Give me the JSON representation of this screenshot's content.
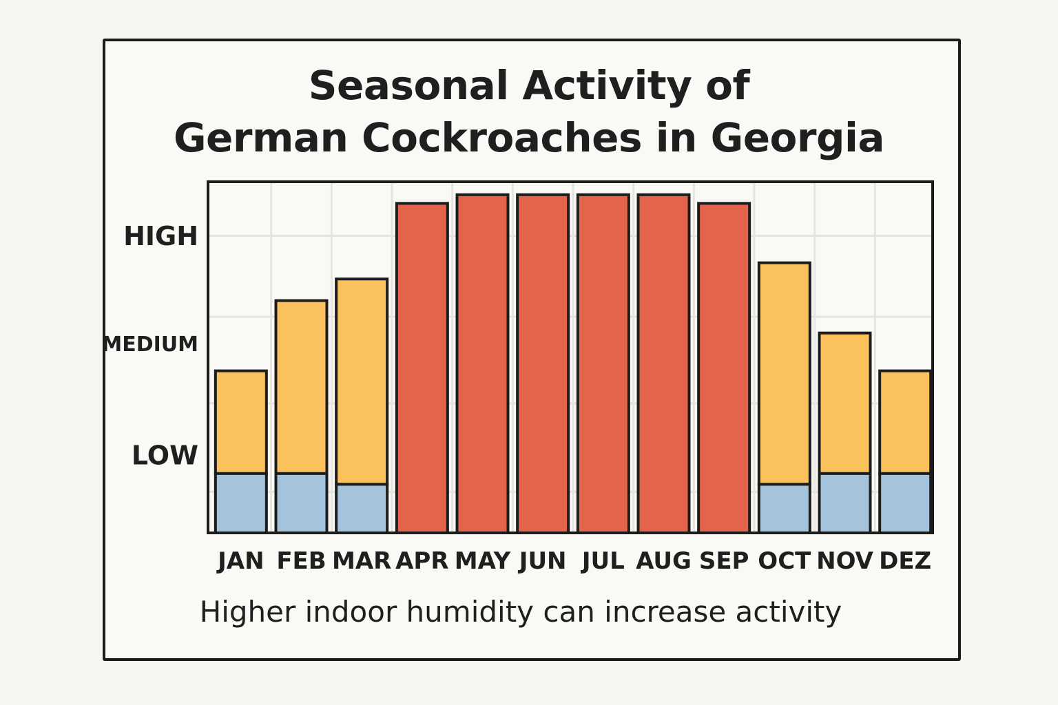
{
  "chart_data": {
    "type": "bar",
    "title": "Seasonal Activity of German Cockroaches in Georgia",
    "title_lines": [
      "Seasonal Activity of",
      "German Cockroaches in Georgia"
    ],
    "categories": [
      "JAN",
      "FEB",
      "MAR",
      "APR",
      "MAY",
      "JUN",
      "JUL",
      "AUG",
      "SEP",
      "OCT",
      "NOV",
      "DEZ"
    ],
    "y_ticks": [
      {
        "label": "LOW",
        "value": 0.72
      },
      {
        "label": "MEDIUM",
        "value": 1.75
      },
      {
        "label": "HIGH",
        "value": 2.75
      }
    ],
    "ylim": [
      0,
      3.25
    ],
    "grid": true,
    "stacked": true,
    "series": [
      {
        "values": [
          0.55,
          0.55,
          0.45,
          0,
          0,
          0,
          0,
          0,
          0,
          0.45,
          0.55,
          0.55
        ],
        "color": "#a3c4dc"
      },
      {
        "values": [
          0.95,
          1.6,
          1.9,
          0,
          0,
          0,
          0,
          0,
          0,
          2.05,
          1.3,
          0.95
        ],
        "color": "#fbc15c"
      },
      {
        "values": [
          0,
          0,
          0,
          3.05,
          3.13,
          3.13,
          3.13,
          3.13,
          3.05,
          0,
          0,
          0
        ],
        "color": "#e3644a"
      }
    ],
    "footnote": "Higher indoor humidity can increase activity"
  },
  "colors": {
    "background": "#f8f6f1",
    "frame": "#1c1c1c",
    "grid": "#e6e4df",
    "bar_outline": "#1c1c1c"
  }
}
